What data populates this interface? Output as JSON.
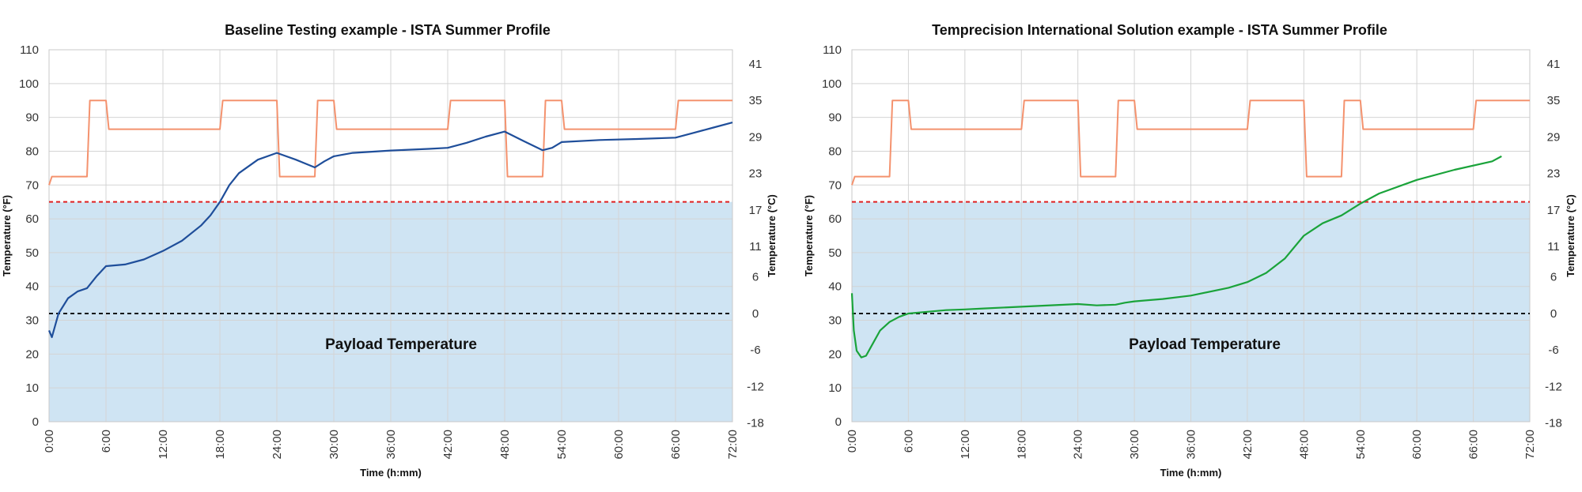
{
  "chart_data": [
    {
      "type": "line",
      "title": "Baseline Testing example - ISTA Summer Profile",
      "xlabel": "Time (h:mm)",
      "ylabel": "Temperature (°F)",
      "y2label": "Temperature (°C)",
      "xlim": [
        0,
        72
      ],
      "ylim": [
        0,
        110
      ],
      "x_tick_labels": [
        "0:00",
        "6:00",
        "12:00",
        "18:00",
        "24:00",
        "30:00",
        "36:00",
        "42:00",
        "48:00",
        "54:00",
        "60:00",
        "66:00",
        "72:00"
      ],
      "y_tick_labels": [
        "0",
        "10",
        "20",
        "30",
        "40",
        "50",
        "60",
        "70",
        "80",
        "90",
        "100",
        "110"
      ],
      "y2_tick_labels": [
        "-18",
        "-12",
        "-6",
        "0",
        "6",
        "11",
        "17",
        "23",
        "29",
        "35",
        "41"
      ],
      "grid": true,
      "shaded_band": {
        "label": "Payload Temperature",
        "y0": 0,
        "y1": 65,
        "color": "#cfe4f3"
      },
      "reference_lines": [
        {
          "y": 65,
          "color": "#e02020",
          "style": "dashed"
        },
        {
          "y": 32,
          "color": "#111111",
          "style": "dashed"
        }
      ],
      "series": [
        {
          "role": "ambient",
          "color": "#f4926e",
          "x": [
            0,
            0.3,
            4,
            4.3,
            6,
            6.3,
            18,
            18.3,
            24,
            24.3,
            28,
            28.3,
            30,
            30.3,
            42,
            42.3,
            48,
            48.3,
            52,
            52.3,
            54,
            54.3,
            66,
            66.3,
            72
          ],
          "y": [
            70,
            72.5,
            72.5,
            95,
            95,
            86.5,
            86.5,
            95,
            95,
            72.5,
            72.5,
            95,
            95,
            86.5,
            86.5,
            95,
            95,
            72.5,
            72.5,
            95,
            95,
            86.5,
            86.5,
            95,
            95
          ]
        },
        {
          "role": "payload",
          "color": "#1f4e9a",
          "x": [
            0,
            0.3,
            1,
            2,
            3,
            4,
            5,
            6,
            8,
            10,
            12,
            14,
            16,
            17,
            18,
            19,
            20,
            22,
            24,
            26,
            28,
            29,
            30,
            32,
            36,
            40,
            42,
            44,
            46,
            48,
            50,
            52,
            53,
            54,
            58,
            62,
            66,
            68,
            70,
            72
          ],
          "y": [
            27,
            25,
            32,
            36.5,
            38.5,
            39.5,
            43,
            46,
            46.5,
            48,
            50.5,
            53.5,
            58,
            61,
            65,
            70,
            73.5,
            77.5,
            79.5,
            77.5,
            75.2,
            77,
            78.5,
            79.5,
            80.2,
            80.7,
            81,
            82.5,
            84.3,
            85.8,
            83,
            80.3,
            81,
            82.7,
            83.3,
            83.6,
            84,
            85.5,
            87,
            88.5
          ]
        }
      ]
    },
    {
      "type": "line",
      "title": "Temprecision International Solution example - ISTA Summer Profile",
      "xlabel": "Time (h:mm)",
      "ylabel": "Temperature (°F)",
      "y2label": "Temperature (°C)",
      "xlim": [
        0,
        72
      ],
      "ylim": [
        0,
        110
      ],
      "x_tick_labels": [
        "0:00",
        "6:00",
        "12:00",
        "18:00",
        "24:00",
        "30:00",
        "36:00",
        "42:00",
        "48:00",
        "54:00",
        "60:00",
        "66:00",
        "72:00"
      ],
      "y_tick_labels": [
        "0",
        "10",
        "20",
        "30",
        "40",
        "50",
        "60",
        "70",
        "80",
        "90",
        "100",
        "110"
      ],
      "y2_tick_labels": [
        "-18",
        "-12",
        "-6",
        "0",
        "6",
        "11",
        "17",
        "23",
        "29",
        "35",
        "41"
      ],
      "grid": true,
      "shaded_band": {
        "label": "Payload Temperature",
        "y0": 0,
        "y1": 65,
        "color": "#cfe4f3"
      },
      "reference_lines": [
        {
          "y": 65,
          "color": "#e02020",
          "style": "dashed"
        },
        {
          "y": 32,
          "color": "#111111",
          "style": "dashed"
        }
      ],
      "series": [
        {
          "role": "ambient",
          "color": "#f4926e",
          "x": [
            0,
            0.3,
            4,
            4.3,
            6,
            6.3,
            18,
            18.3,
            24,
            24.3,
            28,
            28.3,
            30,
            30.3,
            42,
            42.3,
            48,
            48.3,
            52,
            52.3,
            54,
            54.3,
            66,
            66.3,
            72
          ],
          "y": [
            70,
            72.5,
            72.5,
            95,
            95,
            86.5,
            86.5,
            95,
            95,
            72.5,
            72.5,
            95,
            95,
            86.5,
            86.5,
            95,
            95,
            72.5,
            72.5,
            95,
            95,
            86.5,
            86.5,
            95,
            95
          ]
        },
        {
          "role": "payload",
          "color": "#1aa33a",
          "x": [
            0,
            0.2,
            0.5,
            1,
            1.5,
            2,
            3,
            4,
            5,
            6,
            8,
            10,
            12,
            14,
            18,
            24,
            26,
            28,
            29,
            30,
            33,
            36,
            40,
            42,
            44,
            46,
            48,
            50,
            52,
            54,
            56,
            60,
            64,
            68,
            69
          ],
          "y": [
            38,
            27,
            21,
            19,
            19.5,
            22,
            27,
            29.5,
            31,
            32,
            32.5,
            33,
            33.2,
            33.5,
            34,
            34.8,
            34.4,
            34.6,
            35.2,
            35.6,
            36.3,
            37.3,
            39.6,
            41.3,
            44,
            48.3,
            55,
            58.7,
            61,
            64.5,
            67.5,
            71.5,
            74.5,
            77,
            78.5
          ]
        }
      ]
    }
  ]
}
